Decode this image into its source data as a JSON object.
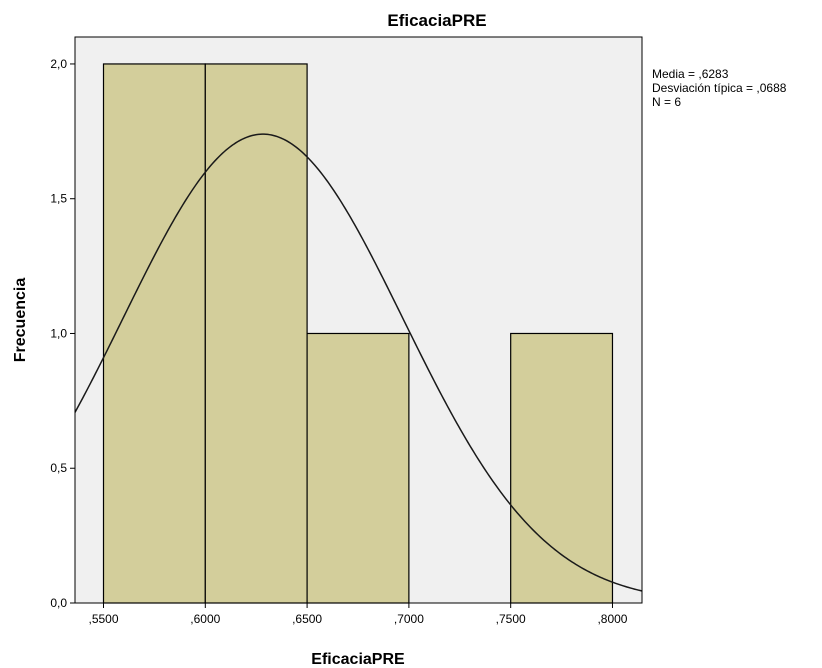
{
  "chart_data": {
    "type": "bar",
    "subtype": "histogram",
    "title": "EficaciaPRE",
    "xlabel": "EficaciaPRE",
    "ylabel": "Frecuencia",
    "xlim": [
      0.536,
      0.8145
    ],
    "ylim": [
      0,
      2.1
    ],
    "x_ticks": [
      0.55,
      0.6,
      0.65,
      0.7,
      0.75,
      0.8
    ],
    "x_tick_labels": [
      ",5500",
      ",6000",
      ",6500",
      ",7000",
      ",7500",
      ",8000"
    ],
    "y_ticks": [
      0,
      0.5,
      1.0,
      1.5,
      2.0
    ],
    "y_tick_labels": [
      "0,0",
      "0,5",
      "1,0",
      "1,5",
      "2,0"
    ],
    "bins": [
      {
        "start": 0.55,
        "end": 0.6,
        "count": 2
      },
      {
        "start": 0.6,
        "end": 0.65,
        "count": 2
      },
      {
        "start": 0.65,
        "end": 0.7,
        "count": 1
      },
      {
        "start": 0.7,
        "end": 0.75,
        "count": 0
      },
      {
        "start": 0.75,
        "end": 0.8,
        "count": 1
      }
    ],
    "normal_curve": {
      "mean": 0.6283,
      "std": 0.0688,
      "n": 6,
      "bin_width": 0.05
    },
    "stats_lines": [
      "Media = ,6283",
      "Desviación típica = ,0688",
      "N = 6"
    ],
    "grid": false,
    "colors": {
      "bar_fill": "#d3ce9b",
      "plot_background": "#f0f0f0",
      "curve": "#1a1a1a",
      "border": "#000000"
    }
  }
}
